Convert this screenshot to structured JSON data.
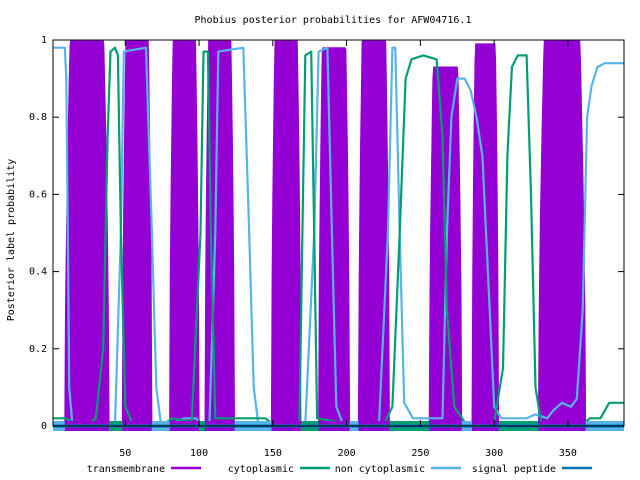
{
  "chart_data": {
    "type": "line",
    "title": "Phobius posterior probabilities for AFW04716.1",
    "xlabel": "",
    "ylabel": "Posterior label probability",
    "xlim": [
      1,
      388
    ],
    "ylim": [
      0,
      1
    ],
    "x_ticks": [
      50,
      100,
      150,
      200,
      250,
      300,
      350
    ],
    "y_ticks": [
      0,
      0.2,
      0.4,
      0.6,
      0.8,
      1
    ],
    "y_tick_labels": [
      "0",
      "0.2",
      "0.4",
      "0.6",
      "0.8",
      "1"
    ],
    "legend_position": "bottom",
    "series": [
      {
        "name": "transmembrane",
        "color": "#9400d3",
        "style": "impulses",
        "segments": [
          {
            "start": 9,
            "end": 39,
            "peak": 1.0
          },
          {
            "start": 48,
            "end": 68,
            "peak": 1.0
          },
          {
            "start": 80,
            "end": 100,
            "peak": 1.0
          },
          {
            "start": 104,
            "end": 124,
            "peak": 1.0
          },
          {
            "start": 149,
            "end": 169,
            "peak": 1.0
          },
          {
            "start": 181,
            "end": 202,
            "peak": 0.98
          },
          {
            "start": 208,
            "end": 229,
            "peak": 1.0
          },
          {
            "start": 256,
            "end": 278,
            "peak": 0.93
          },
          {
            "start": 285,
            "end": 303,
            "peak": 0.99
          },
          {
            "start": 330,
            "end": 362,
            "peak": 1.0
          }
        ]
      },
      {
        "name": "cytoplasmic",
        "color": "#009e73",
        "style": "line"
      },
      {
        "name": "non cytoplasmic",
        "color": "#56b4e9",
        "style": "line"
      },
      {
        "name": "signal peptide",
        "color": "#0072b2",
        "style": "line",
        "values_note_free": true
      }
    ],
    "cytoplasmic_points": [
      [
        1,
        0.02
      ],
      [
        9,
        0.02
      ],
      [
        15,
        0.01
      ],
      [
        25,
        0.005
      ],
      [
        30,
        0.02
      ],
      [
        35,
        0.2
      ],
      [
        38,
        0.75
      ],
      [
        40,
        0.97
      ],
      [
        43,
        0.98
      ],
      [
        45,
        0.96
      ],
      [
        47,
        0.5
      ],
      [
        50,
        0.05
      ],
      [
        55,
        0.005
      ],
      [
        76,
        0.005
      ],
      [
        82,
        0.02
      ],
      [
        95,
        0.01
      ],
      [
        101,
        0.5
      ],
      [
        103,
        0.97
      ],
      [
        106,
        0.97
      ],
      [
        108,
        0.5
      ],
      [
        111,
        0.02
      ],
      [
        125,
        0.02
      ],
      [
        145,
        0.02
      ],
      [
        150,
        0.005
      ],
      [
        168,
        0.005
      ],
      [
        170,
        0.5
      ],
      [
        172,
        0.96
      ],
      [
        176,
        0.97
      ],
      [
        178,
        0.5
      ],
      [
        180,
        0.02
      ],
      [
        203,
        0.005
      ],
      [
        206,
        0.005
      ],
      [
        226,
        0.01
      ],
      [
        231,
        0.05
      ],
      [
        236,
        0.5
      ],
      [
        240,
        0.9
      ],
      [
        244,
        0.95
      ],
      [
        252,
        0.96
      ],
      [
        261,
        0.95
      ],
      [
        265,
        0.75
      ],
      [
        268,
        0.3
      ],
      [
        273,
        0.05
      ],
      [
        280,
        0.01
      ],
      [
        300,
        0.01
      ],
      [
        306,
        0.15
      ],
      [
        309,
        0.7
      ],
      [
        312,
        0.93
      ],
      [
        316,
        0.96
      ],
      [
        322,
        0.96
      ],
      [
        325,
        0.6
      ],
      [
        328,
        0.1
      ],
      [
        332,
        0.005
      ],
      [
        360,
        0.005
      ],
      [
        365,
        0.02
      ],
      [
        372,
        0.02
      ],
      [
        378,
        0.06
      ],
      [
        388,
        0.06
      ]
    ],
    "noncyto_points": [
      [
        1,
        0.98
      ],
      [
        9,
        0.98
      ],
      [
        10,
        0.9
      ],
      [
        11,
        0.5
      ],
      [
        12,
        0.1
      ],
      [
        14,
        0.01
      ],
      [
        30,
        0.01
      ],
      [
        36,
        0.01
      ],
      [
        43,
        0.005
      ],
      [
        47,
        0.5
      ],
      [
        49,
        0.97
      ],
      [
        64,
        0.98
      ],
      [
        68,
        0.5
      ],
      [
        71,
        0.1
      ],
      [
        74,
        0.01
      ],
      [
        84,
        0.01
      ],
      [
        90,
        0.02
      ],
      [
        98,
        0.02
      ],
      [
        101,
        0.005
      ],
      [
        107,
        0.005
      ],
      [
        111,
        0.5
      ],
      [
        113,
        0.97
      ],
      [
        130,
        0.98
      ],
      [
        134,
        0.5
      ],
      [
        137,
        0.1
      ],
      [
        140,
        0.01
      ],
      [
        160,
        0.01
      ],
      [
        166,
        0.005
      ],
      [
        172,
        0.005
      ],
      [
        178,
        0.5
      ],
      [
        181,
        0.97
      ],
      [
        187,
        0.98
      ],
      [
        190,
        0.5
      ],
      [
        193,
        0.05
      ],
      [
        197,
        0.01
      ],
      [
        210,
        0.005
      ],
      [
        222,
        0.01
      ],
      [
        228,
        0.5
      ],
      [
        231,
        0.98
      ],
      [
        233,
        0.98
      ],
      [
        236,
        0.5
      ],
      [
        239,
        0.06
      ],
      [
        245,
        0.02
      ],
      [
        260,
        0.02
      ],
      [
        265,
        0.02
      ],
      [
        268,
        0.5
      ],
      [
        271,
        0.8
      ],
      [
        275,
        0.9
      ],
      [
        280,
        0.9
      ],
      [
        284,
        0.87
      ],
      [
        288,
        0.8
      ],
      [
        292,
        0.7
      ],
      [
        297,
        0.3
      ],
      [
        300,
        0.05
      ],
      [
        305,
        0.02
      ],
      [
        315,
        0.02
      ],
      [
        322,
        0.02
      ],
      [
        328,
        0.03
      ],
      [
        336,
        0.02
      ],
      [
        340,
        0.04
      ],
      [
        346,
        0.06
      ],
      [
        352,
        0.05
      ],
      [
        356,
        0.07
      ],
      [
        360,
        0.3
      ],
      [
        363,
        0.8
      ],
      [
        366,
        0.88
      ],
      [
        370,
        0.93
      ],
      [
        375,
        0.94
      ],
      [
        388,
        0.94
      ]
    ],
    "signal_points": [
      [
        1,
        0.0
      ],
      [
        388,
        0.0
      ]
    ]
  }
}
